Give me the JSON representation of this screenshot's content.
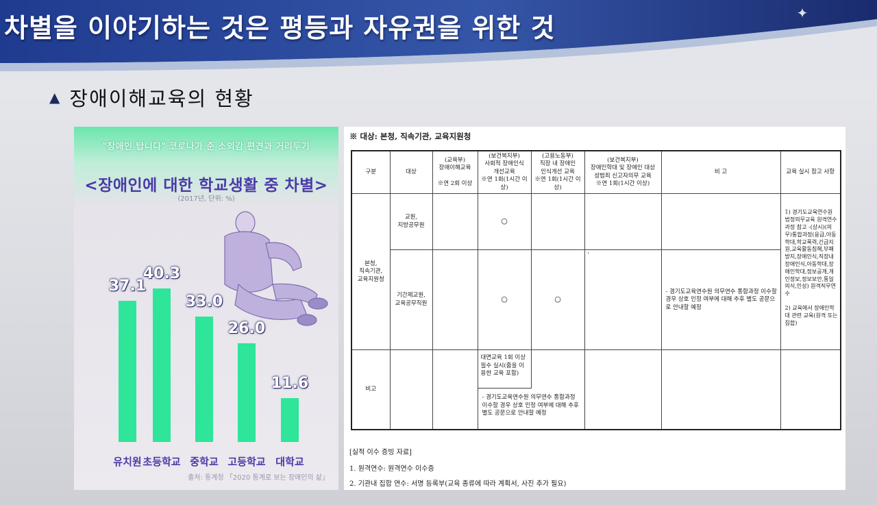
{
  "slide": {
    "title": "차별을 이야기하는 것은 평등과 자유권을 위한 것",
    "subtitle": "장애이해교육의 현황",
    "accent": "#2b3f8a"
  },
  "infographic": {
    "tagline": "\"장애인 탑니다\" 코로나가 준 소외감 편견과 거리두기",
    "headline": "<장애인에 대한 학교생활 중 차별>",
    "unit_note": "(2017년, 단위: %)",
    "source": "출처: 통계청 「2020 통계로 보는 장애인의 삶」"
  },
  "chart_data": {
    "type": "bar",
    "title": "<장애인에 대한 학교생활 중 차별>",
    "categories": [
      "유치원",
      "초등학교",
      "중학교",
      "고등학교",
      "대학교"
    ],
    "values": [
      37.1,
      40.3,
      33.0,
      26.0,
      11.6
    ],
    "value_labels": [
      "37.1",
      "40.3",
      "33.0",
      "26.0",
      "11.6"
    ],
    "unit": "%",
    "ylim": [
      0,
      45
    ],
    "grid": false,
    "bar_color": "#2ee59a"
  },
  "document": {
    "heading": "※ 대상: 본청, 직속기관, 교육지원청",
    "headers": {
      "gubun": "구분",
      "target": "대상",
      "c1": "(교육부)\n장애이해교육\n\n※연 2회 이상",
      "c2": "(보건복지부)\n사회적 장애인식\n개선교육\n※연 1회(1시간 이상)",
      "c3": "(고용노동부)\n직장 내 장애인\n인식개선 교육\n※연 1회(1시간 이상)",
      "c4": "(보건복지부)\n장애인학대 및 장애인 대상\n성범죄 신고자의무 교육\n※연 1회(1시간 이상)",
      "remark": "비 고",
      "ref": "교육 실시 참고 사항"
    },
    "row_group": "본청,\n직속기관,\n교육지원청",
    "row1_target": "교원,\n지방공무원",
    "row2_target": "기간제교원,\n교육공무직원",
    "circle": "○",
    "stray_mark": "'",
    "remark_text": "- 경기도교육연수원 의무연수 통합과정 이수할 경우 상호 인정 여부에 대해 추후 별도 공문으로 안내할 예정",
    "ref_text_1": "1) 경기도교육연수원 법정의무교육 원격연수과정 참고 -(상시)(의무)통합과정(응급,아동학대,학교폭력,긴급지원,교육활동침해,부패방지,장애인식,직장내장애인식,아동학대,장애인학대,정보공개,개인정보,정보보안,통일의식,인성) 원격직무연수",
    "ref_text_2": "2) 교육에서 장애인학대 관련 교육(원격 또는 집합)",
    "bigo_label": "비고",
    "bigo_text_1": "대면교육 1회 이상 필수 실시(줌을 이용한 교육 포함)",
    "bigo_text_2": "- 경기도교육연수원 의무연수 통합과정 이수할 경우 상호 인정 여부에 대해 추후 별도 공문으로 안내할 예정",
    "foot_1": "[실적 이수 증빙 자료]",
    "foot_2": "1. 원격연수: 원격연수 이수증",
    "foot_3": "2. 기관내 집합 연수: 서명 등록부(교육 종류에 따라 계획서, 사진 추가 필요)"
  }
}
